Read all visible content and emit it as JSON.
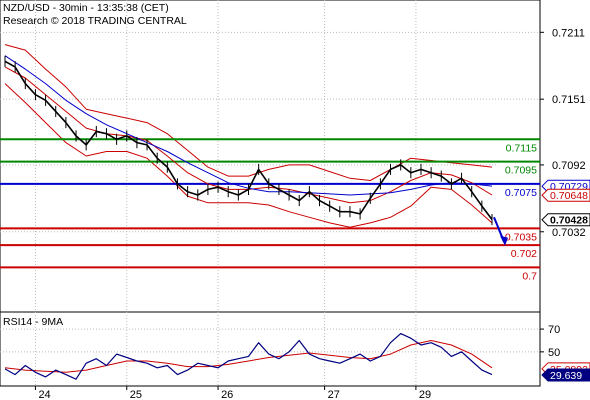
{
  "header": {
    "title": "NZD/USD - 30min - 13:35:38 (CET)",
    "subtitle": "Research © 2018 TRADING CENTRAL"
  },
  "chart_data": [
    {
      "type": "line",
      "panel": "price",
      "y_ticks": [
        "0.7211",
        "0.7151",
        "0.7092",
        "0.7032"
      ],
      "y_tick_values": [
        0.7211,
        0.7151,
        0.7092,
        0.7032
      ],
      "ylim": [
        0.696,
        0.724
      ],
      "x_tick_labels": [
        "24",
        "25",
        "26",
        "27",
        "29"
      ],
      "x_tick_positions": [
        30,
        120,
        210,
        315,
        405
      ],
      "x_range": [
        0,
        480
      ],
      "colors": {
        "price": "#000000",
        "ma_fast": "#cc0000",
        "ma_slow": "#0000cc",
        "band": "#cc0000",
        "support": "#cc0000",
        "resistance": "#008800",
        "pivot": "#0000cc",
        "current_badge": "#000000",
        "ma_badge": "#cc0000",
        "slow_badge": "#0000cc"
      },
      "levels": [
        {
          "value": 0.7115,
          "label": "0.7115",
          "kind": "resistance"
        },
        {
          "value": 0.7095,
          "label": "0.7095",
          "kind": "resistance"
        },
        {
          "value": 0.7075,
          "label": "0.7075",
          "kind": "pivot"
        },
        {
          "value": 0.7035,
          "label": "0.7035",
          "kind": "support"
        },
        {
          "value": 0.702,
          "label": "0.702",
          "kind": "support"
        },
        {
          "value": 0.7,
          "label": "0.7",
          "kind": "support"
        }
      ],
      "badges": [
        {
          "value": 0.70729,
          "label": "0.70729",
          "kind": "slow_badge"
        },
        {
          "value": 0.70648,
          "label": "0.70648",
          "kind": "ma_badge"
        },
        {
          "value": 0.70428,
          "label": "0.70428",
          "kind": "current_badge"
        }
      ],
      "series": [
        {
          "kind": "price",
          "x": [
            0,
            10,
            20,
            30,
            40,
            50,
            60,
            70,
            80,
            90,
            100,
            110,
            120,
            130,
            140,
            150,
            160,
            170,
            180,
            190,
            200,
            210,
            220,
            230,
            240,
            250,
            260,
            270,
            280,
            290,
            300,
            310,
            320,
            330,
            340,
            350,
            360,
            370,
            380,
            390,
            400,
            410,
            420,
            430,
            440,
            450,
            460,
            470,
            480
          ],
          "values": [
            0.7185,
            0.718,
            0.7165,
            0.7155,
            0.715,
            0.714,
            0.713,
            0.7118,
            0.711,
            0.7122,
            0.712,
            0.7115,
            0.7118,
            0.7112,
            0.711,
            0.7098,
            0.709,
            0.7075,
            0.7068,
            0.7065,
            0.707,
            0.7072,
            0.7068,
            0.7065,
            0.707,
            0.7088,
            0.7075,
            0.707,
            0.7065,
            0.706,
            0.7068,
            0.706,
            0.7055,
            0.705,
            0.705,
            0.7048,
            0.7062,
            0.7075,
            0.7088,
            0.7092,
            0.7085,
            0.7088,
            0.7085,
            0.7082,
            0.7075,
            0.708,
            0.7068,
            0.7055,
            0.7043
          ]
        },
        {
          "kind": "ma_fast",
          "x": [
            0,
            20,
            40,
            60,
            80,
            100,
            120,
            140,
            160,
            180,
            200,
            220,
            240,
            260,
            280,
            300,
            320,
            340,
            360,
            380,
            400,
            420,
            440,
            460,
            480
          ],
          "values": [
            0.718,
            0.717,
            0.7155,
            0.714,
            0.7125,
            0.712,
            0.7118,
            0.7114,
            0.71,
            0.7085,
            0.7075,
            0.707,
            0.707,
            0.7072,
            0.707,
            0.7066,
            0.7062,
            0.7058,
            0.706,
            0.7068,
            0.7078,
            0.7085,
            0.7083,
            0.7076,
            0.7065
          ]
        },
        {
          "kind": "ma_slow",
          "x": [
            0,
            20,
            40,
            60,
            80,
            100,
            120,
            140,
            160,
            180,
            200,
            220,
            240,
            260,
            280,
            300,
            320,
            340,
            360,
            380,
            400,
            420,
            440,
            460,
            480
          ],
          "values": [
            0.719,
            0.7178,
            0.7165,
            0.715,
            0.7138,
            0.7128,
            0.712,
            0.7112,
            0.7104,
            0.7094,
            0.7085,
            0.7076,
            0.7071,
            0.7068,
            0.7068,
            0.7067,
            0.7066,
            0.7065,
            0.7066,
            0.7067,
            0.707,
            0.7074,
            0.7076,
            0.7075,
            0.7073
          ]
        },
        {
          "kind": "band",
          "x": [
            0,
            20,
            40,
            60,
            80,
            100,
            120,
            140,
            160,
            180,
            200,
            220,
            240,
            260,
            280,
            300,
            320,
            340,
            360,
            380,
            400,
            420,
            440,
            460,
            480
          ],
          "values": [
            0.72,
            0.7195,
            0.7178,
            0.7162,
            0.7142,
            0.7138,
            0.7134,
            0.713,
            0.712,
            0.7105,
            0.709,
            0.7082,
            0.7082,
            0.7088,
            0.7092,
            0.7092,
            0.7086,
            0.708,
            0.7078,
            0.7088,
            0.7098,
            0.7096,
            0.7094,
            0.7092,
            0.709
          ]
        },
        {
          "kind": "band",
          "x": [
            0,
            20,
            40,
            60,
            80,
            100,
            120,
            140,
            160,
            180,
            200,
            220,
            240,
            260,
            280,
            300,
            320,
            340,
            360,
            380,
            400,
            420,
            440,
            460,
            480
          ],
          "values": [
            0.7165,
            0.7148,
            0.713,
            0.7112,
            0.71,
            0.7104,
            0.7104,
            0.7098,
            0.7082,
            0.7064,
            0.7058,
            0.7058,
            0.7058,
            0.7056,
            0.705,
            0.7045,
            0.704,
            0.7036,
            0.704,
            0.7045,
            0.7055,
            0.7072,
            0.707,
            0.7056,
            0.704
          ]
        }
      ]
    },
    {
      "type": "line",
      "panel": "rsi",
      "label": "RSI14 - 9MA",
      "y_ticks": [
        "70",
        "50"
      ],
      "y_tick_values": [
        70,
        50
      ],
      "ylim": [
        20,
        85
      ],
      "badges": [
        {
          "value": 35.0892,
          "label": "35.0892",
          "kind": "rsi_ma_badge"
        },
        {
          "value": 29.639,
          "label": "29.639",
          "kind": "rsi_badge"
        }
      ],
      "colors": {
        "rsi": "#000080",
        "rsi_ma": "#cc0000"
      },
      "series": [
        {
          "kind": "rsi",
          "x": [
            0,
            10,
            20,
            30,
            40,
            50,
            60,
            70,
            80,
            90,
            100,
            110,
            120,
            130,
            140,
            150,
            160,
            170,
            180,
            190,
            200,
            210,
            220,
            230,
            240,
            250,
            260,
            270,
            280,
            290,
            300,
            310,
            320,
            330,
            340,
            350,
            360,
            370,
            380,
            390,
            400,
            410,
            420,
            430,
            440,
            450,
            460,
            470,
            480
          ],
          "values": [
            35,
            30,
            38,
            32,
            28,
            34,
            30,
            26,
            40,
            44,
            38,
            48,
            45,
            42,
            40,
            36,
            38,
            30,
            34,
            40,
            38,
            36,
            42,
            44,
            46,
            58,
            48,
            44,
            50,
            60,
            48,
            44,
            42,
            40,
            44,
            48,
            42,
            46,
            58,
            66,
            62,
            56,
            58,
            54,
            46,
            50,
            42,
            34,
            30
          ]
        },
        {
          "kind": "rsi_ma",
          "x": [
            0,
            20,
            40,
            60,
            80,
            100,
            120,
            140,
            160,
            180,
            200,
            220,
            240,
            260,
            280,
            300,
            320,
            340,
            360,
            380,
            400,
            420,
            440,
            460,
            480
          ],
          "values": [
            36,
            34,
            33,
            32,
            34,
            38,
            42,
            42,
            40,
            37,
            37,
            39,
            42,
            45,
            47,
            49,
            47,
            45,
            44,
            48,
            56,
            60,
            56,
            48,
            36
          ]
        }
      ]
    }
  ]
}
